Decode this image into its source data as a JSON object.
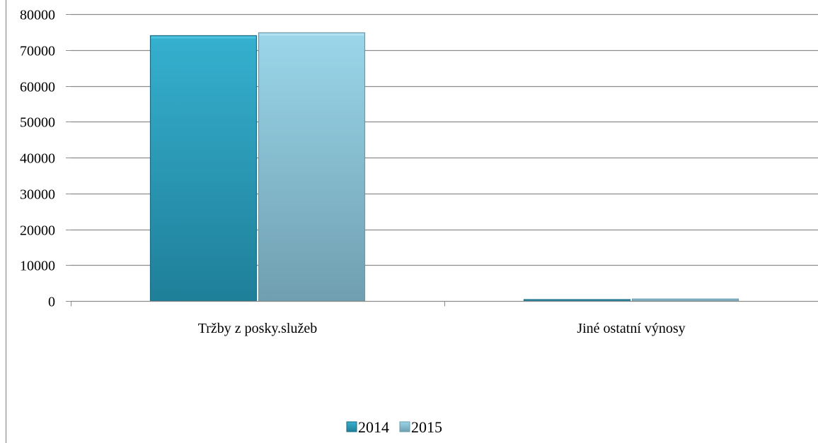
{
  "chart_data": {
    "type": "bar",
    "categories": [
      "Tržby z posky.služeb",
      "Jiné ostatní výnosy"
    ],
    "series": [
      {
        "name": "2014",
        "values": [
          74000,
          350
        ],
        "color": "#2ea5c4"
      },
      {
        "name": "2015",
        "values": [
          74800,
          550
        ],
        "color": "#8ccbe0"
      }
    ],
    "ylim": [
      0,
      80000
    ],
    "yticks": [
      "0",
      "10000",
      "20000",
      "30000",
      "40000",
      "50000",
      "60000",
      "70000",
      "80000"
    ],
    "grid": true,
    "legend": "bottom"
  }
}
